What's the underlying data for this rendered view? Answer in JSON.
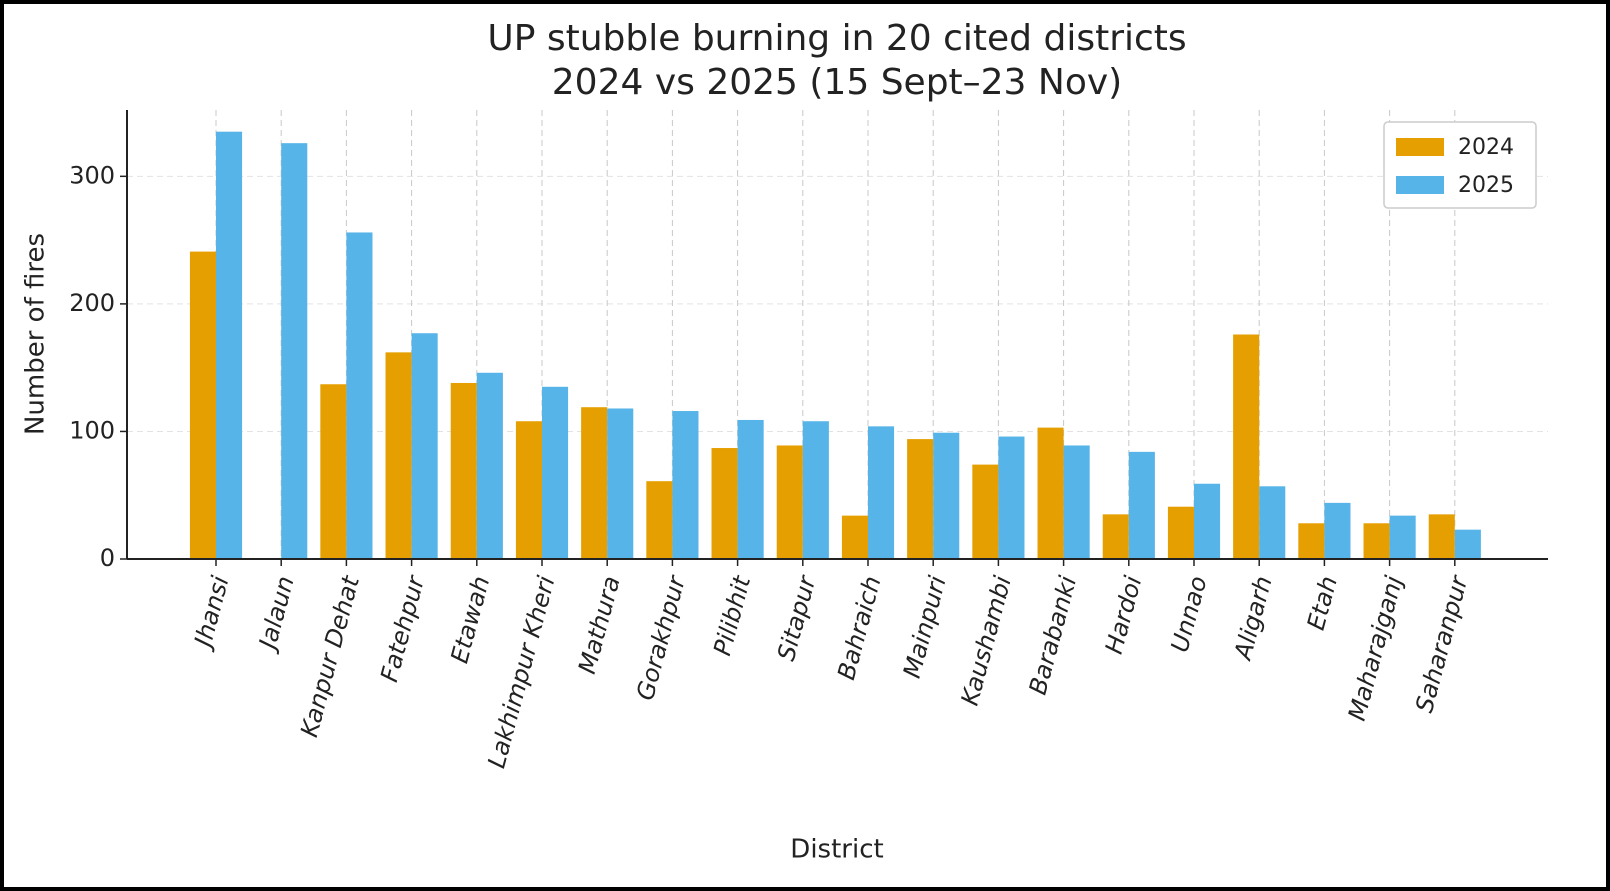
{
  "chart_data": {
    "type": "bar",
    "title": [
      "UP stubble burning in 20 cited districts",
      "2024 vs 2025 (15 Sept–23 Nov)"
    ],
    "x_label": "District",
    "y_label": "Number of fires",
    "categories": [
      "Jhansi",
      "Jalaun",
      "Kanpur Dehat",
      "Fatehpur",
      "Etawah",
      "Lakhimpur Kheri",
      "Mathura",
      "Gorakhpur",
      "Pilibhit",
      "Sitapur",
      "Bahraich",
      "Mainpuri",
      "Kaushambi",
      "Barabanki",
      "Hardoi",
      "Unnao",
      "Aligarh",
      "Etah",
      "Maharajganj",
      "Saharanpur"
    ],
    "series": [
      {
        "name": "2024",
        "color": "#E69F00",
        "values": [
          241,
          0,
          137,
          162,
          138,
          108,
          119,
          61,
          87,
          89,
          34,
          94,
          74,
          103,
          35,
          41,
          176,
          28,
          28,
          35
        ]
      },
      {
        "name": "2025",
        "color": "#56B4E9",
        "values": [
          335,
          326,
          256,
          177,
          146,
          135,
          118,
          116,
          109,
          108,
          104,
          99,
          96,
          89,
          84,
          59,
          57,
          44,
          34,
          23
        ]
      }
    ],
    "ylim": [
      0,
      352
    ],
    "yticks": [
      0,
      100,
      200,
      300
    ],
    "grid": true,
    "legend": "upper right"
  }
}
